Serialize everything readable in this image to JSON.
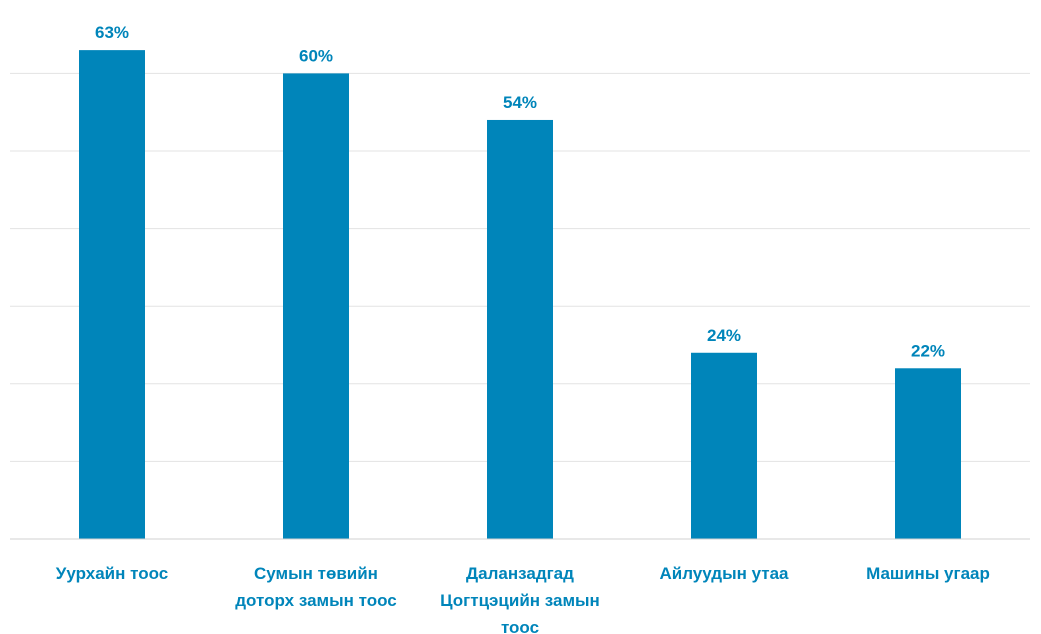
{
  "chart_data": {
    "type": "bar",
    "categories": [
      [
        "Уурхайн тоос"
      ],
      [
        "Сумын төвийн",
        "доторх замын тоос"
      ],
      [
        "Даланзадгад",
        "Цогтцэцийн замын",
        "тоос"
      ],
      [
        "Айлуудын утаа"
      ],
      [
        "Машины угаар"
      ]
    ],
    "values": [
      63,
      60,
      54,
      24,
      22
    ],
    "value_labels": [
      "63%",
      "60%",
      "54%",
      "24%",
      "22%"
    ],
    "ylim": [
      0,
      70
    ],
    "gridlines": [
      10,
      20,
      30,
      40,
      50,
      60
    ],
    "grid": true,
    "title": "",
    "xlabel": "",
    "ylabel": "",
    "bar_color": "#0085BA",
    "label_color": "#0085BA"
  }
}
